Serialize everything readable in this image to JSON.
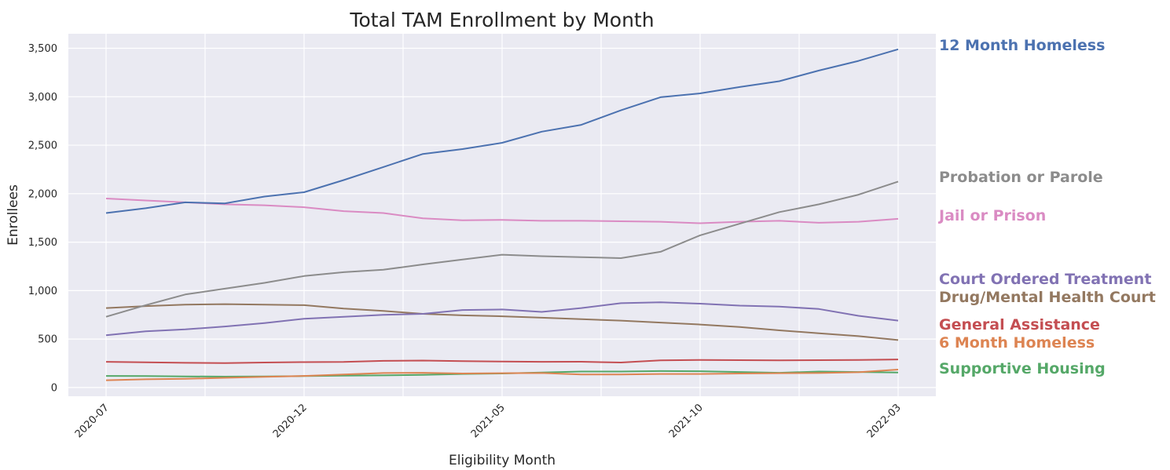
{
  "chart_data": {
    "type": "line",
    "title": "Total TAM Enrollment by Month",
    "xlabel": "Eligibility Month",
    "ylabel": "Enrollees",
    "ylim": [
      -90,
      3650
    ],
    "yticks": [
      0,
      500,
      1000,
      1500,
      2000,
      2500,
      3000,
      3500
    ],
    "ytick_labels": [
      "0",
      "500",
      "1,000",
      "1,500",
      "2,000",
      "2,500",
      "3,000",
      "3,500"
    ],
    "xticks": [
      "2020-07",
      "2020-12",
      "2021-05",
      "2021-10",
      "2022-03"
    ],
    "grid": true,
    "legend": "end-of-line labels",
    "x": [
      "2020-07",
      "2020-08",
      "2020-09",
      "2020-10",
      "2020-11",
      "2020-12",
      "2021-01",
      "2021-02",
      "2021-03",
      "2021-04",
      "2021-05",
      "2021-06",
      "2021-07",
      "2021-08",
      "2021-09",
      "2021-10",
      "2021-11",
      "2021-12",
      "2022-01",
      "2022-02",
      "2022-03"
    ],
    "series": [
      {
        "name": "12 Month Homeless",
        "color": "#4c72b0",
        "values": [
          1800,
          1850,
          1910,
          1900,
          1970,
          2015,
          2140,
          2275,
          2410,
          2460,
          2525,
          2640,
          2710,
          2860,
          2995,
          3035,
          3100,
          3160,
          3270,
          3370,
          3490
        ]
      },
      {
        "name": "Probation or Parole",
        "color": "#8c8c8c",
        "values": [
          730,
          850,
          960,
          1020,
          1080,
          1150,
          1190,
          1215,
          1270,
          1320,
          1370,
          1355,
          1345,
          1335,
          1400,
          1570,
          1690,
          1810,
          1890,
          1990,
          2125
        ]
      },
      {
        "name": "Jail or Prison",
        "color": "#da8bc3",
        "values": [
          1950,
          1930,
          1910,
          1890,
          1880,
          1860,
          1820,
          1800,
          1745,
          1725,
          1730,
          1720,
          1720,
          1715,
          1710,
          1695,
          1710,
          1720,
          1700,
          1710,
          1740
        ]
      },
      {
        "name": "Court Ordered Treatment",
        "color": "#8172b3",
        "values": [
          540,
          580,
          600,
          630,
          665,
          710,
          730,
          750,
          760,
          800,
          805,
          780,
          820,
          870,
          880,
          865,
          845,
          835,
          810,
          740,
          690
        ]
      },
      {
        "name": "Drug/Mental Health Court",
        "color": "#937860",
        "values": [
          820,
          840,
          855,
          860,
          855,
          850,
          815,
          790,
          760,
          745,
          735,
          720,
          705,
          690,
          670,
          650,
          625,
          590,
          560,
          530,
          490
        ]
      },
      {
        "name": "General Assistance",
        "color": "#c44e52",
        "values": [
          265,
          260,
          255,
          252,
          258,
          262,
          264,
          275,
          278,
          272,
          268,
          265,
          266,
          258,
          280,
          285,
          282,
          280,
          282,
          285,
          290
        ]
      },
      {
        "name": "6 Month Homeless",
        "color": "#dd8452",
        "values": [
          75,
          85,
          90,
          100,
          110,
          120,
          135,
          150,
          152,
          145,
          148,
          150,
          135,
          135,
          140,
          140,
          145,
          148,
          150,
          158,
          185
        ]
      },
      {
        "name": "Supportive Housing",
        "color": "#55a868",
        "values": [
          120,
          118,
          115,
          112,
          115,
          118,
          122,
          125,
          130,
          140,
          145,
          155,
          165,
          165,
          170,
          168,
          160,
          152,
          165,
          160,
          155
        ]
      }
    ]
  }
}
